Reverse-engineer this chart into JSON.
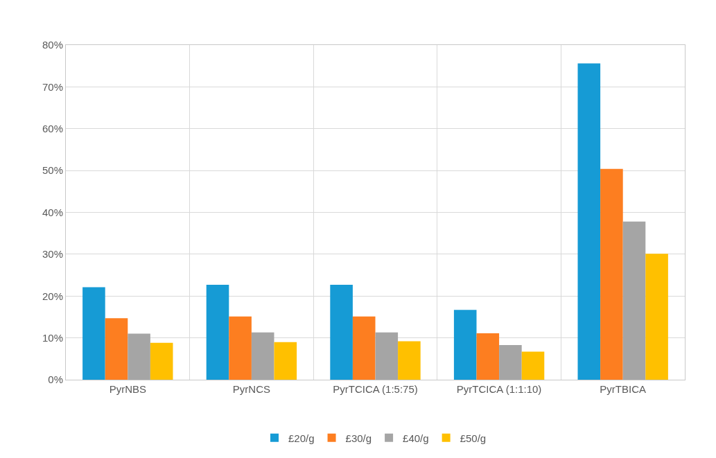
{
  "chart_data": {
    "type": "bar",
    "categories": [
      "PyrNBS",
      "PyrNCS",
      "PyrTCICA (1:5:75)",
      "PyrTCICA (1:1:10)",
      "PyrTBICA"
    ],
    "series": [
      {
        "name": "£20/g",
        "color": "#169bd5",
        "values": [
          22.1,
          22.7,
          22.7,
          16.7,
          75.6
        ]
      },
      {
        "name": "£30/g",
        "color": "#fd7e20",
        "values": [
          14.7,
          15.1,
          15.1,
          11.1,
          50.4
        ]
      },
      {
        "name": "£40/g",
        "color": "#a5a5a5",
        "values": [
          11.0,
          11.3,
          11.3,
          8.3,
          37.8
        ]
      },
      {
        "name": "£50/g",
        "color": "#ffc000",
        "values": [
          8.8,
          9.0,
          9.2,
          6.7,
          30.1
        ]
      }
    ],
    "ylim": [
      0,
      80
    ],
    "yticks": [
      {
        "value": 0,
        "label": "0%"
      },
      {
        "value": 10,
        "label": "10%"
      },
      {
        "value": 20,
        "label": "20%"
      },
      {
        "value": 30,
        "label": "30%"
      },
      {
        "value": 40,
        "label": "40%"
      },
      {
        "value": 50,
        "label": "50%"
      },
      {
        "value": 60,
        "label": "60%"
      },
      {
        "value": 70,
        "label": "70%"
      },
      {
        "value": 80,
        "label": "80%"
      }
    ],
    "grid": true,
    "legend": "bottom"
  }
}
